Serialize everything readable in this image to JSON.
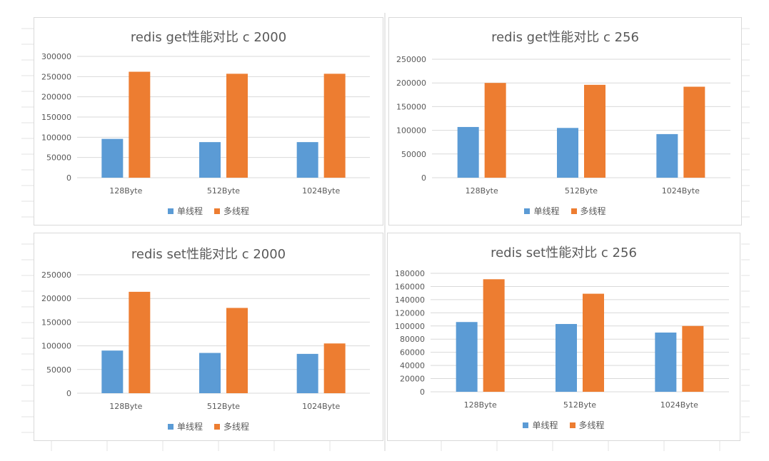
{
  "colors": {
    "single": "#5b9bd5",
    "multi": "#ed7d31",
    "grid": "#d9d9d9",
    "text": "#595959"
  },
  "chart_data": [
    {
      "type": "bar",
      "title": "redis get性能对比 c 2000",
      "categories": [
        "128Byte",
        "512Byte",
        "1024Byte"
      ],
      "series": [
        {
          "name": "单线程",
          "values": [
            96000,
            88000,
            88000
          ]
        },
        {
          "name": "多线程",
          "values": [
            262000,
            257000,
            257000
          ]
        }
      ],
      "ylim": [
        0,
        300000
      ],
      "yticks": [
        "0",
        "50000",
        "100000",
        "150000",
        "200000",
        "250000",
        "300000"
      ],
      "xlabel": "",
      "ylabel": "",
      "legend": "bottom",
      "grid": true
    },
    {
      "type": "bar",
      "title": "redis get性能对比 c 256",
      "categories": [
        "128Byte",
        "512Byte",
        "1024Byte"
      ],
      "series": [
        {
          "name": "单线程",
          "values": [
            107000,
            105000,
            92000
          ]
        },
        {
          "name": "多线程",
          "values": [
            200000,
            196000,
            192000
          ]
        }
      ],
      "ylim": [
        0,
        250000
      ],
      "yticks": [
        "0",
        "50000",
        "100000",
        "150000",
        "200000",
        "250000"
      ],
      "xlabel": "",
      "ylabel": "",
      "legend": "bottom",
      "grid": true
    },
    {
      "type": "bar",
      "title": "redis set性能对比 c 2000",
      "categories": [
        "128Byte",
        "512Byte",
        "1024Byte"
      ],
      "series": [
        {
          "name": "单线程",
          "values": [
            90000,
            85000,
            83000
          ]
        },
        {
          "name": "多线程",
          "values": [
            214000,
            180000,
            105000
          ]
        }
      ],
      "ylim": [
        0,
        250000
      ],
      "yticks": [
        "0",
        "50000",
        "100000",
        "150000",
        "200000",
        "250000"
      ],
      "xlabel": "",
      "ylabel": "",
      "legend": "bottom",
      "grid": true
    },
    {
      "type": "bar",
      "title": "redis set性能对比 c 256",
      "categories": [
        "128Byte",
        "512Byte",
        "1024Byte"
      ],
      "series": [
        {
          "name": "单线程",
          "values": [
            106000,
            103000,
            90000
          ]
        },
        {
          "name": "多线程",
          "values": [
            171000,
            149000,
            100000
          ]
        }
      ],
      "ylim": [
        0,
        180000
      ],
      "yticks": [
        "0",
        "20000",
        "40000",
        "60000",
        "80000",
        "100000",
        "120000",
        "140000",
        "160000",
        "180000"
      ],
      "xlabel": "",
      "ylabel": "",
      "legend": "bottom",
      "grid": true
    }
  ]
}
